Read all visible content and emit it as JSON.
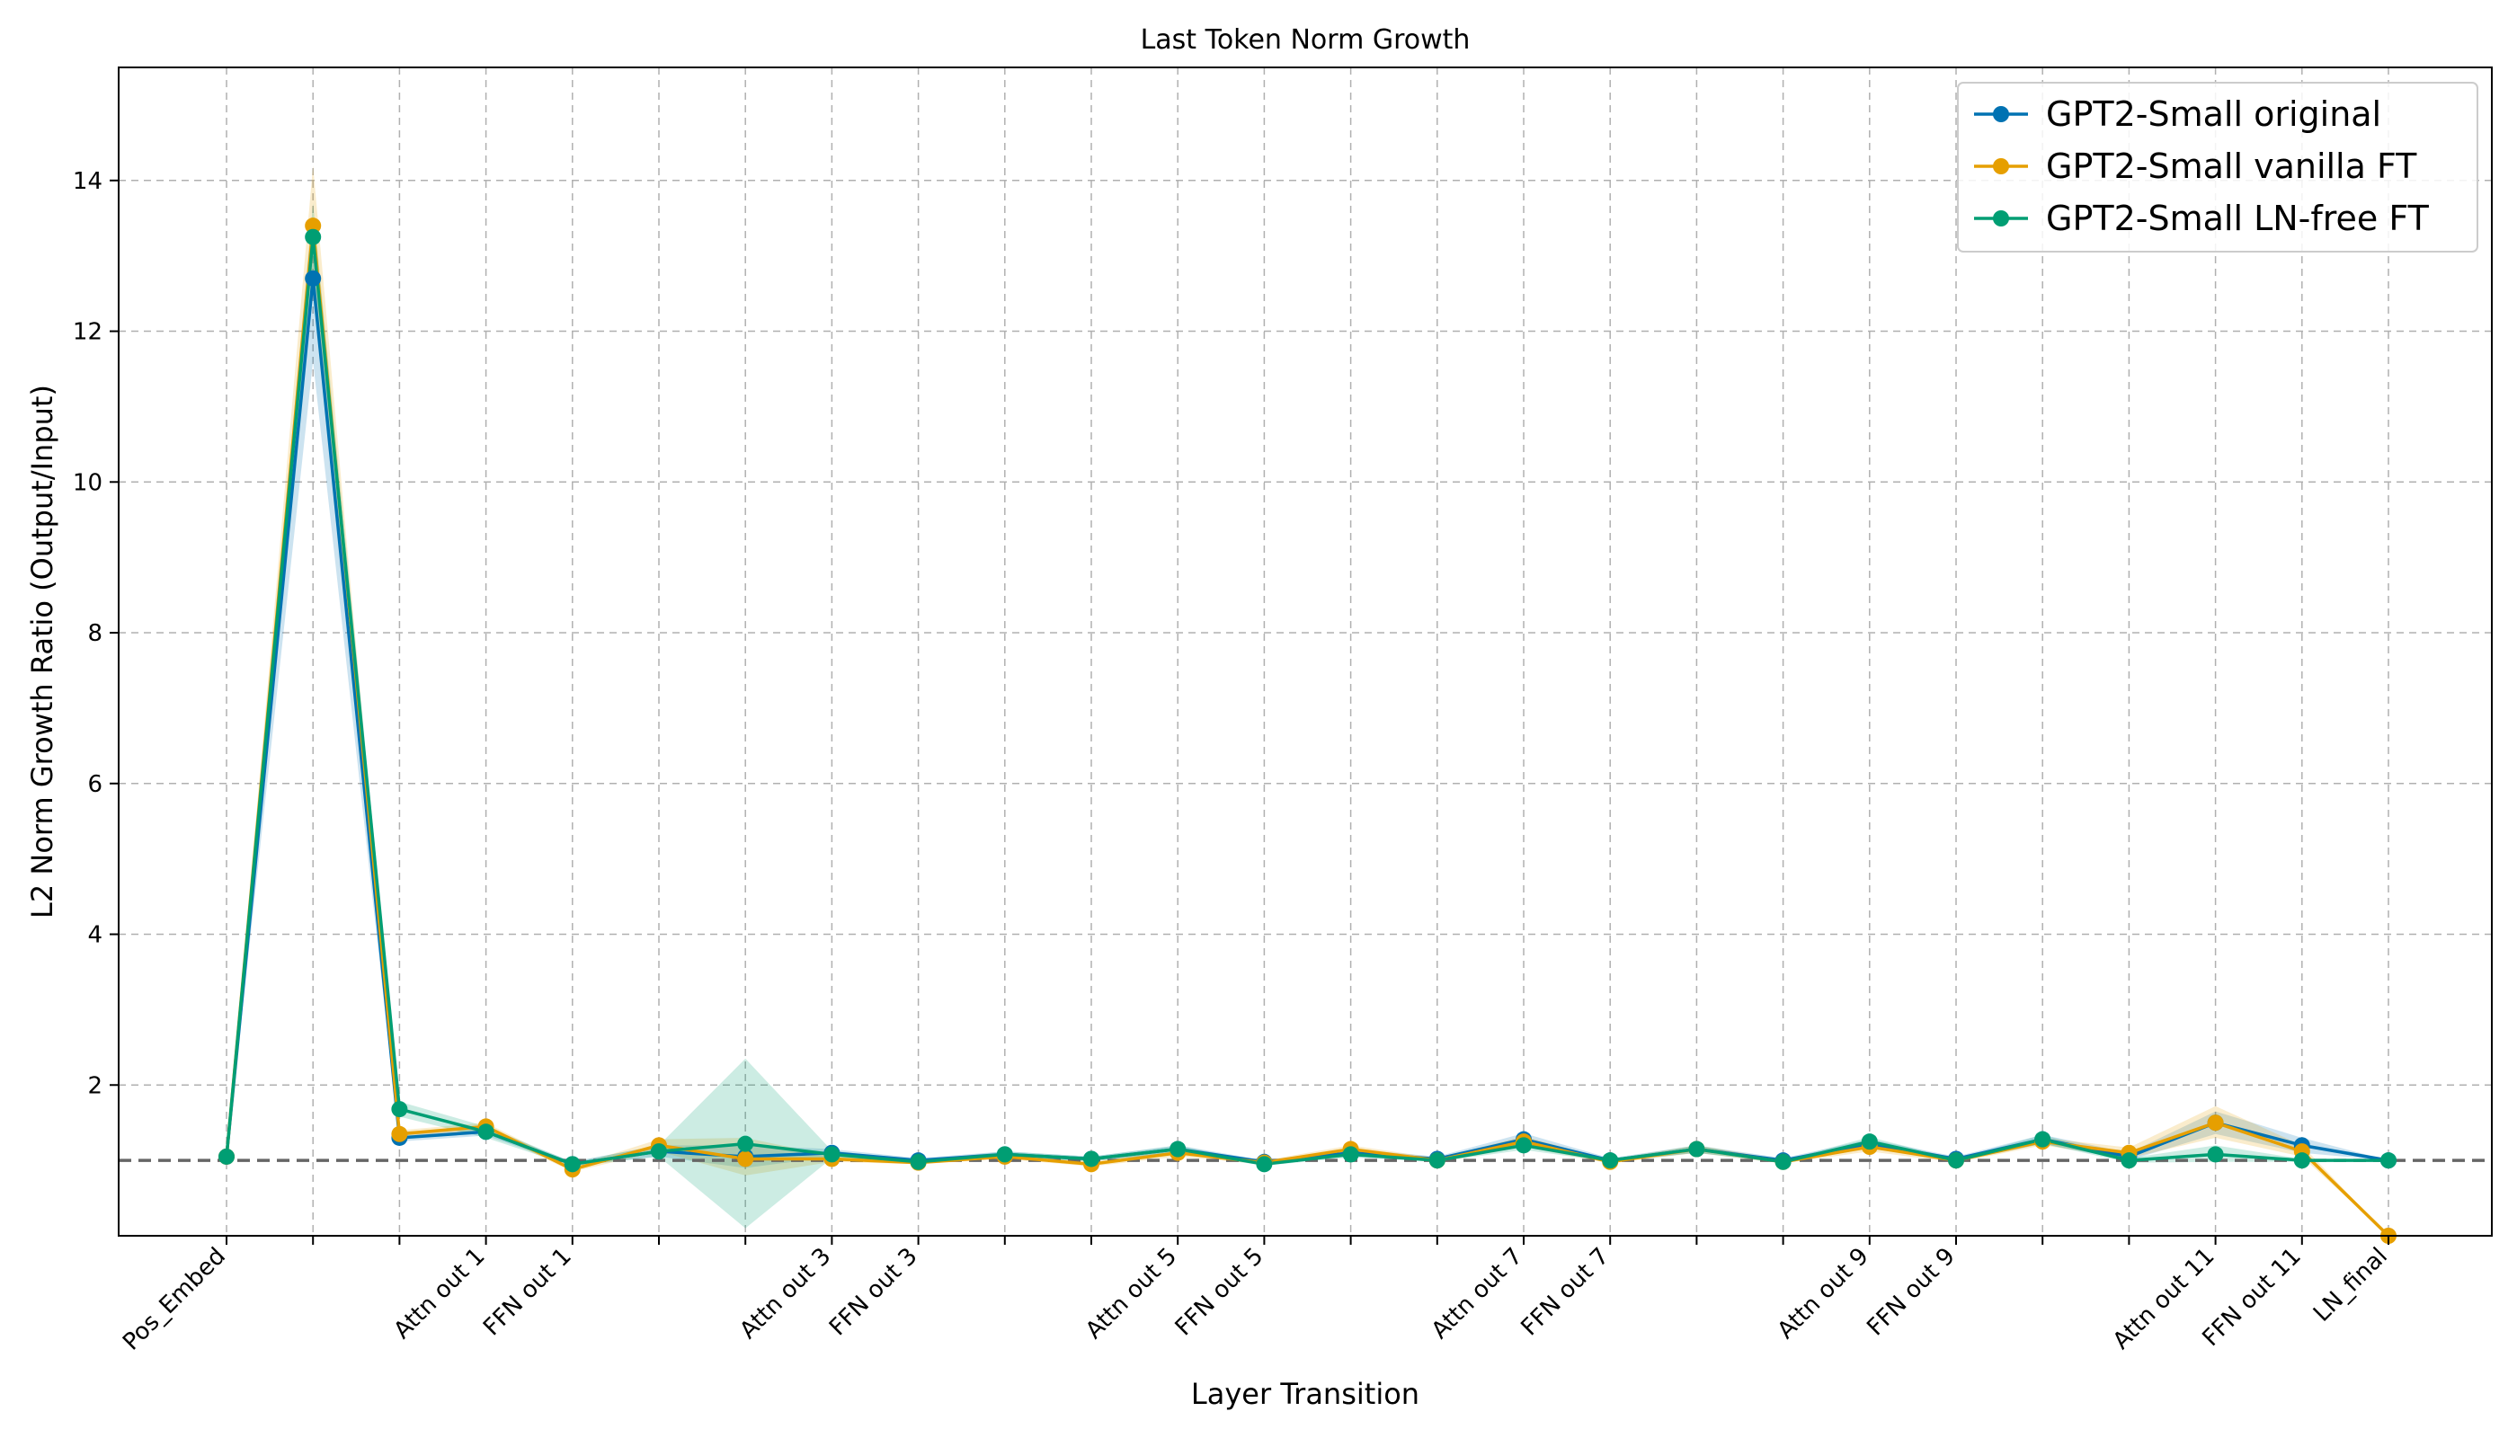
{
  "chart_data": {
    "type": "line",
    "title": "Last Token Norm Growth",
    "xlabel": "Layer Transition",
    "ylabel": "L2 Norm Growth Ratio (Output/Input)",
    "ylim": [
      0,
      15.5
    ],
    "yticks": [
      2,
      4,
      6,
      8,
      10,
      12,
      14
    ],
    "grid": true,
    "legend_position": "top-right",
    "reference_line": {
      "y": 1.0,
      "style": "dashed",
      "color": "#666666"
    },
    "categories": [
      "Pos_Embed",
      "",
      "",
      "Attn out 1",
      "FFN out 1",
      "",
      "",
      "Attn out 3",
      "FFN out 3",
      "",
      "",
      "Attn out 5",
      "FFN out 5",
      "",
      "",
      "Attn out 7",
      "FFN out 7",
      "",
      "",
      "Attn out 9",
      "FFN out 9",
      "",
      "",
      "Attn out 11",
      "FFN out 11",
      "LN_final"
    ],
    "tick_label_indices": [
      0,
      3,
      4,
      7,
      8,
      11,
      12,
      15,
      16,
      19,
      20,
      23,
      24,
      25
    ],
    "series": [
      {
        "name": "GPT2-Small original",
        "color": "#0072B2",
        "values": [
          1.05,
          12.7,
          1.3,
          1.38,
          0.95,
          1.12,
          1.05,
          1.1,
          1.0,
          1.08,
          1.02,
          1.15,
          0.98,
          1.1,
          1.02,
          1.28,
          1.0,
          1.15,
          1.0,
          1.22,
          1.02,
          1.28,
          1.05,
          1.5,
          1.2,
          1.0
        ],
        "lower": [
          1.05,
          11.6,
          1.25,
          1.33,
          0.93,
          1.05,
          0.9,
          1.05,
          0.97,
          1.04,
          0.99,
          1.1,
          0.96,
          1.05,
          0.99,
          1.2,
          0.98,
          1.1,
          0.98,
          1.16,
          0.99,
          1.22,
          1.0,
          1.35,
          1.1,
          1.0
        ],
        "upper": [
          1.05,
          13.3,
          1.38,
          1.43,
          0.98,
          1.2,
          1.2,
          1.15,
          1.03,
          1.12,
          1.05,
          1.2,
          1.0,
          1.15,
          1.05,
          1.36,
          1.03,
          1.2,
          1.03,
          1.28,
          1.05,
          1.34,
          1.1,
          1.65,
          1.3,
          1.0
        ]
      },
      {
        "name": "GPT2-Small vanilla FT",
        "color": "#E69F00",
        "values": [
          1.05,
          13.4,
          1.35,
          1.45,
          0.88,
          1.2,
          1.02,
          1.02,
          0.97,
          1.05,
          0.95,
          1.1,
          0.97,
          1.15,
          1.0,
          1.25,
          0.98,
          1.15,
          0.98,
          1.18,
          1.0,
          1.25,
          1.1,
          1.5,
          1.12,
          0.0
        ],
        "lower": [
          1.05,
          12.6,
          1.3,
          1.4,
          0.85,
          1.12,
          0.8,
          0.98,
          0.95,
          1.02,
          0.92,
          1.05,
          0.95,
          1.1,
          0.97,
          1.18,
          0.96,
          1.1,
          0.96,
          1.12,
          0.97,
          1.2,
          1.03,
          1.3,
          1.05,
          0.0
        ],
        "upper": [
          1.05,
          14.2,
          1.4,
          1.5,
          0.92,
          1.28,
          1.3,
          1.06,
          1.0,
          1.08,
          0.99,
          1.15,
          1.0,
          1.2,
          1.03,
          1.32,
          1.01,
          1.2,
          1.01,
          1.24,
          1.03,
          1.3,
          1.17,
          1.72,
          1.2,
          0.0
        ]
      },
      {
        "name": "GPT2-Small LN-free FT",
        "color": "#009E73",
        "values": [
          1.05,
          13.25,
          1.68,
          1.38,
          0.95,
          1.12,
          1.22,
          1.08,
          0.98,
          1.08,
          1.02,
          1.15,
          0.95,
          1.08,
          1.0,
          1.2,
          1.0,
          1.15,
          0.98,
          1.25,
          1.0,
          1.28,
          1.0,
          1.08,
          1.0,
          1.0
        ],
        "lower": [
          1.05,
          12.8,
          1.58,
          1.3,
          0.92,
          1.05,
          0.1,
          1.03,
          0.96,
          1.04,
          0.99,
          1.1,
          0.93,
          1.04,
          0.98,
          1.14,
          0.98,
          1.1,
          0.96,
          1.19,
          0.98,
          1.22,
          0.97,
          0.98,
          0.98,
          1.0
        ],
        "upper": [
          1.05,
          13.7,
          1.78,
          1.45,
          0.98,
          1.2,
          2.35,
          1.13,
          1.0,
          1.12,
          1.05,
          1.2,
          0.97,
          1.12,
          1.02,
          1.26,
          1.02,
          1.2,
          1.0,
          1.31,
          1.02,
          1.34,
          1.03,
          1.2,
          1.02,
          1.0
        ]
      }
    ]
  }
}
